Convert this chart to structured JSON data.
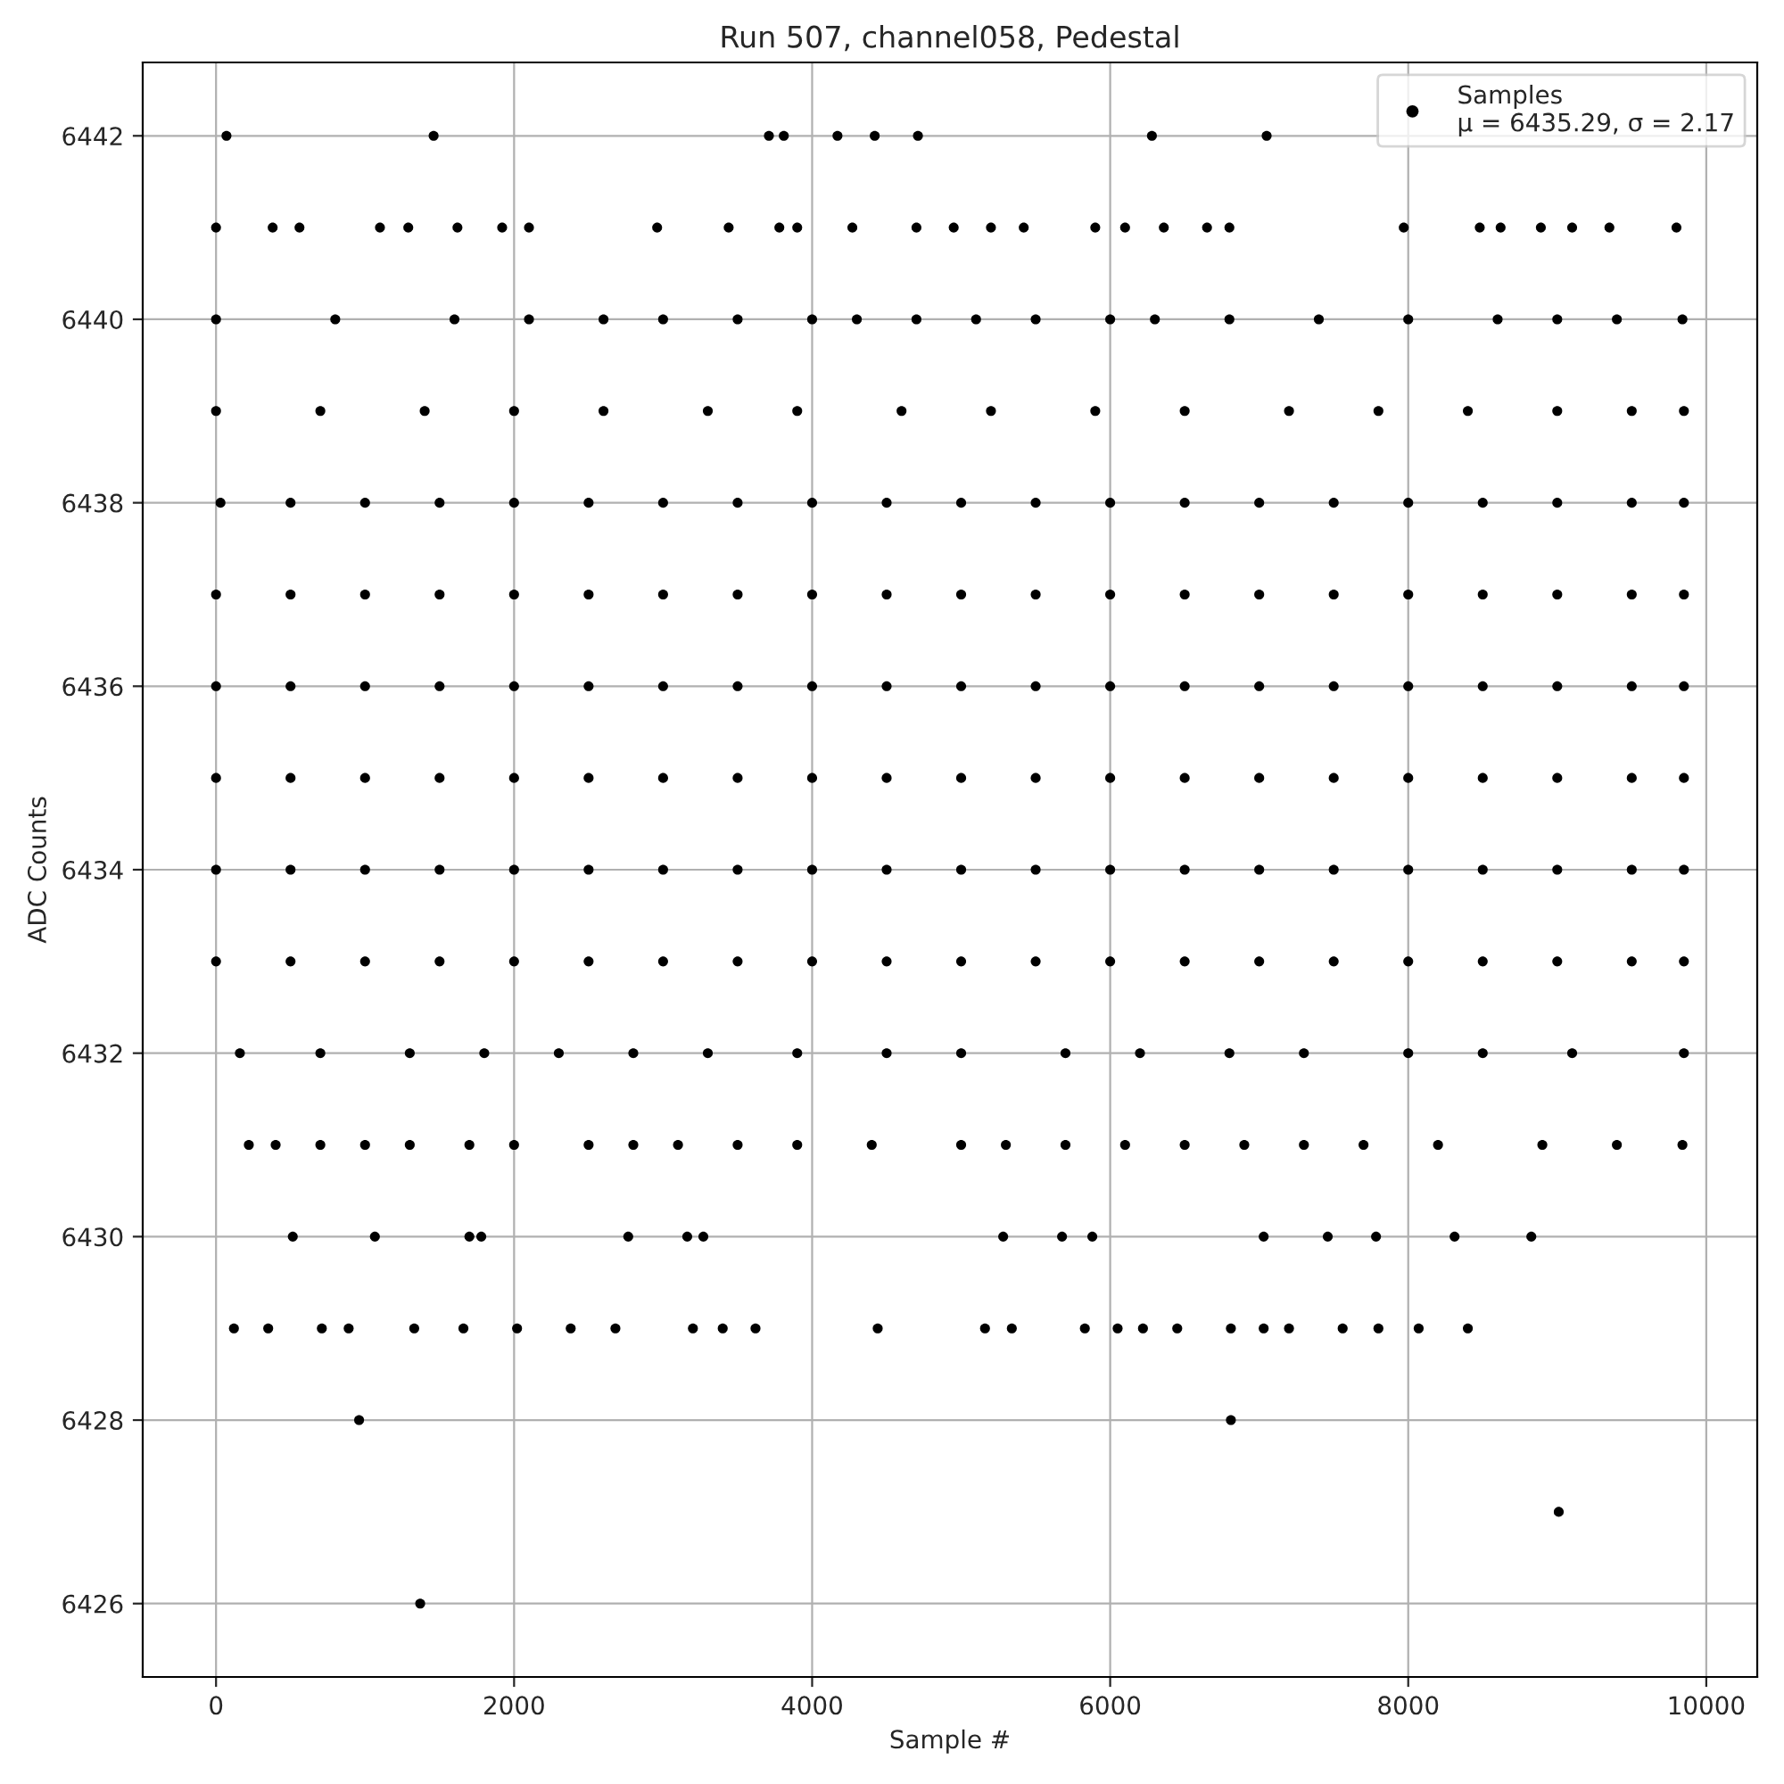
{
  "chart_data": {
    "type": "scatter",
    "title": "Run 507, channel058, Pedestal",
    "xlabel": "Sample #",
    "ylabel": "ADC Counts",
    "xlim": [
      -492,
      10342
    ],
    "ylim": [
      6425.2,
      6442.8
    ],
    "xticks": [
      0,
      2000,
      4000,
      6000,
      8000,
      10000
    ],
    "yticks": [
      6426,
      6428,
      6430,
      6432,
      6434,
      6436,
      6438,
      6440,
      6442
    ],
    "grid": true,
    "legend": "top right",
    "marker": "circle",
    "series": [
      {
        "name": "Samples\nμ = 6435.29, σ = 2.17",
        "color": "#000000",
        "x": [
          0,
          500,
          1000,
          1500,
          2000,
          2500,
          3000,
          3500,
          4000,
          4500,
          5000,
          5500,
          6000,
          6500,
          7000,
          7500,
          8000,
          8500,
          9000,
          9500,
          9850,
          0,
          500,
          1000,
          1500,
          2000,
          2500,
          3000,
          3500,
          4000,
          4500,
          5000,
          5500,
          6000,
          6500,
          7000,
          7500,
          8000,
          8500,
          9000,
          9500,
          9850,
          0,
          500,
          1000,
          1500,
          2000,
          2500,
          3000,
          3500,
          4000,
          4500,
          5000,
          5500,
          6000,
          6500,
          7000,
          7500,
          8000,
          8500,
          9000,
          9500,
          9850,
          0,
          500,
          1000,
          1500,
          2000,
          2500,
          3000,
          3500,
          4000,
          4500,
          5000,
          5500,
          6000,
          6500,
          7000,
          7500,
          8000,
          8500,
          9000,
          9500,
          9850,
          0,
          500,
          1000,
          1500,
          2000,
          2500,
          3000,
          3500,
          4000,
          4500,
          5000,
          5500,
          6000,
          6500,
          7000,
          7500,
          8000,
          8500,
          9000,
          9500,
          9850,
          30,
          500,
          1000,
          1500,
          2000,
          2500,
          3000,
          3500,
          4000,
          4500,
          5000,
          5500,
          6000,
          6500,
          7000,
          7500,
          8000,
          8500,
          9000,
          9500,
          9850,
          0,
          700,
          1400,
          2000,
          2600,
          3300,
          3900,
          4600,
          5200,
          5900,
          6500,
          7200,
          7800,
          8400,
          9000,
          9500,
          9850,
          160,
          700,
          1300,
          1800,
          2300,
          2800,
          3300,
          3900,
          4500,
          5000,
          5700,
          6200,
          6800,
          7300,
          8000,
          8500,
          9100,
          9850,
          0,
          800,
          1600,
          2100,
          2600,
          3000,
          3500,
          4000,
          4300,
          4700,
          5100,
          5500,
          6000,
          6300,
          6800,
          7400,
          8000,
          8600,
          9000,
          9400,
          9840,
          0,
          380,
          560,
          1100,
          1290,
          1620,
          1920,
          2100,
          2960,
          3440,
          3780,
          3900,
          4270,
          4700,
          4950,
          5200,
          5420,
          5900,
          6100,
          6360,
          6650,
          6800,
          7970,
          8480,
          8620,
          8890,
          9100,
          9350,
          9800,
          70,
          1460,
          3710,
          3810,
          4170,
          4420,
          4710,
          6280,
          7050,
          220,
          400,
          700,
          1000,
          1300,
          1700,
          2000,
          2500,
          2800,
          3100,
          3500,
          3900,
          4400,
          5000,
          5300,
          5700,
          6100,
          6500,
          6900,
          7300,
          7700,
          8200,
          8900,
          9400,
          9840,
          515,
          1066,
          1700,
          1780,
          2766,
          3162,
          3270,
          5282,
          5677,
          5880,
          7030,
          7460,
          7784,
          8311,
          8826,
          120,
          350,
          710,
          890,
          1330,
          1660,
          2020,
          2380,
          2680,
          3200,
          3400,
          3620,
          4440,
          5160,
          5340,
          5830,
          6050,
          6220,
          6450,
          6810,
          7030,
          7200,
          7560,
          7800,
          8070,
          8400,
          960,
          6810,
          9010,
          1370
        ],
        "values": [
          6433,
          6433,
          6433,
          6433,
          6433,
          6433,
          6433,
          6433,
          6433,
          6433,
          6433,
          6433,
          6433,
          6433,
          6433,
          6433,
          6433,
          6433,
          6433,
          6433,
          6433,
          6434,
          6434,
          6434,
          6434,
          6434,
          6434,
          6434,
          6434,
          6434,
          6434,
          6434,
          6434,
          6434,
          6434,
          6434,
          6434,
          6434,
          6434,
          6434,
          6434,
          6434,
          6435,
          6435,
          6435,
          6435,
          6435,
          6435,
          6435,
          6435,
          6435,
          6435,
          6435,
          6435,
          6435,
          6435,
          6435,
          6435,
          6435,
          6435,
          6435,
          6435,
          6435,
          6436,
          6436,
          6436,
          6436,
          6436,
          6436,
          6436,
          6436,
          6436,
          6436,
          6436,
          6436,
          6436,
          6436,
          6436,
          6436,
          6436,
          6436,
          6436,
          6436,
          6436,
          6437,
          6437,
          6437,
          6437,
          6437,
          6437,
          6437,
          6437,
          6437,
          6437,
          6437,
          6437,
          6437,
          6437,
          6437,
          6437,
          6437,
          6437,
          6437,
          6437,
          6437,
          6438,
          6438,
          6438,
          6438,
          6438,
          6438,
          6438,
          6438,
          6438,
          6438,
          6438,
          6438,
          6438,
          6438,
          6438,
          6438,
          6438,
          6438,
          6438,
          6438,
          6438,
          6439,
          6439,
          6439,
          6439,
          6439,
          6439,
          6439,
          6439,
          6439,
          6439,
          6439,
          6439,
          6439,
          6439,
          6439,
          6439,
          6439,
          6432,
          6432,
          6432,
          6432,
          6432,
          6432,
          6432,
          6432,
          6432,
          6432,
          6432,
          6432,
          6432,
          6432,
          6432,
          6432,
          6432,
          6432,
          6440,
          6440,
          6440,
          6440,
          6440,
          6440,
          6440,
          6440,
          6440,
          6440,
          6440,
          6440,
          6440,
          6440,
          6440,
          6440,
          6440,
          6440,
          6440,
          6440,
          6440,
          6441,
          6441,
          6441,
          6441,
          6441,
          6441,
          6441,
          6441,
          6441,
          6441,
          6441,
          6441,
          6441,
          6441,
          6441,
          6441,
          6441,
          6441,
          6441,
          6441,
          6441,
          6441,
          6441,
          6441,
          6441,
          6441,
          6441,
          6441,
          6441,
          6442,
          6442,
          6442,
          6442,
          6442,
          6442,
          6442,
          6442,
          6442,
          6431,
          6431,
          6431,
          6431,
          6431,
          6431,
          6431,
          6431,
          6431,
          6431,
          6431,
          6431,
          6431,
          6431,
          6431,
          6431,
          6431,
          6431,
          6431,
          6431,
          6431,
          6431,
          6431,
          6431,
          6431,
          6430,
          6430,
          6430,
          6430,
          6430,
          6430,
          6430,
          6430,
          6430,
          6430,
          6430,
          6430,
          6430,
          6430,
          6430,
          6429,
          6429,
          6429,
          6429,
          6429,
          6429,
          6429,
          6429,
          6429,
          6429,
          6429,
          6429,
          6429,
          6429,
          6429,
          6429,
          6429,
          6429,
          6429,
          6429,
          6429,
          6429,
          6429,
          6429,
          6429,
          6429,
          6428,
          6428,
          6427,
          6426
        ]
      }
    ]
  }
}
